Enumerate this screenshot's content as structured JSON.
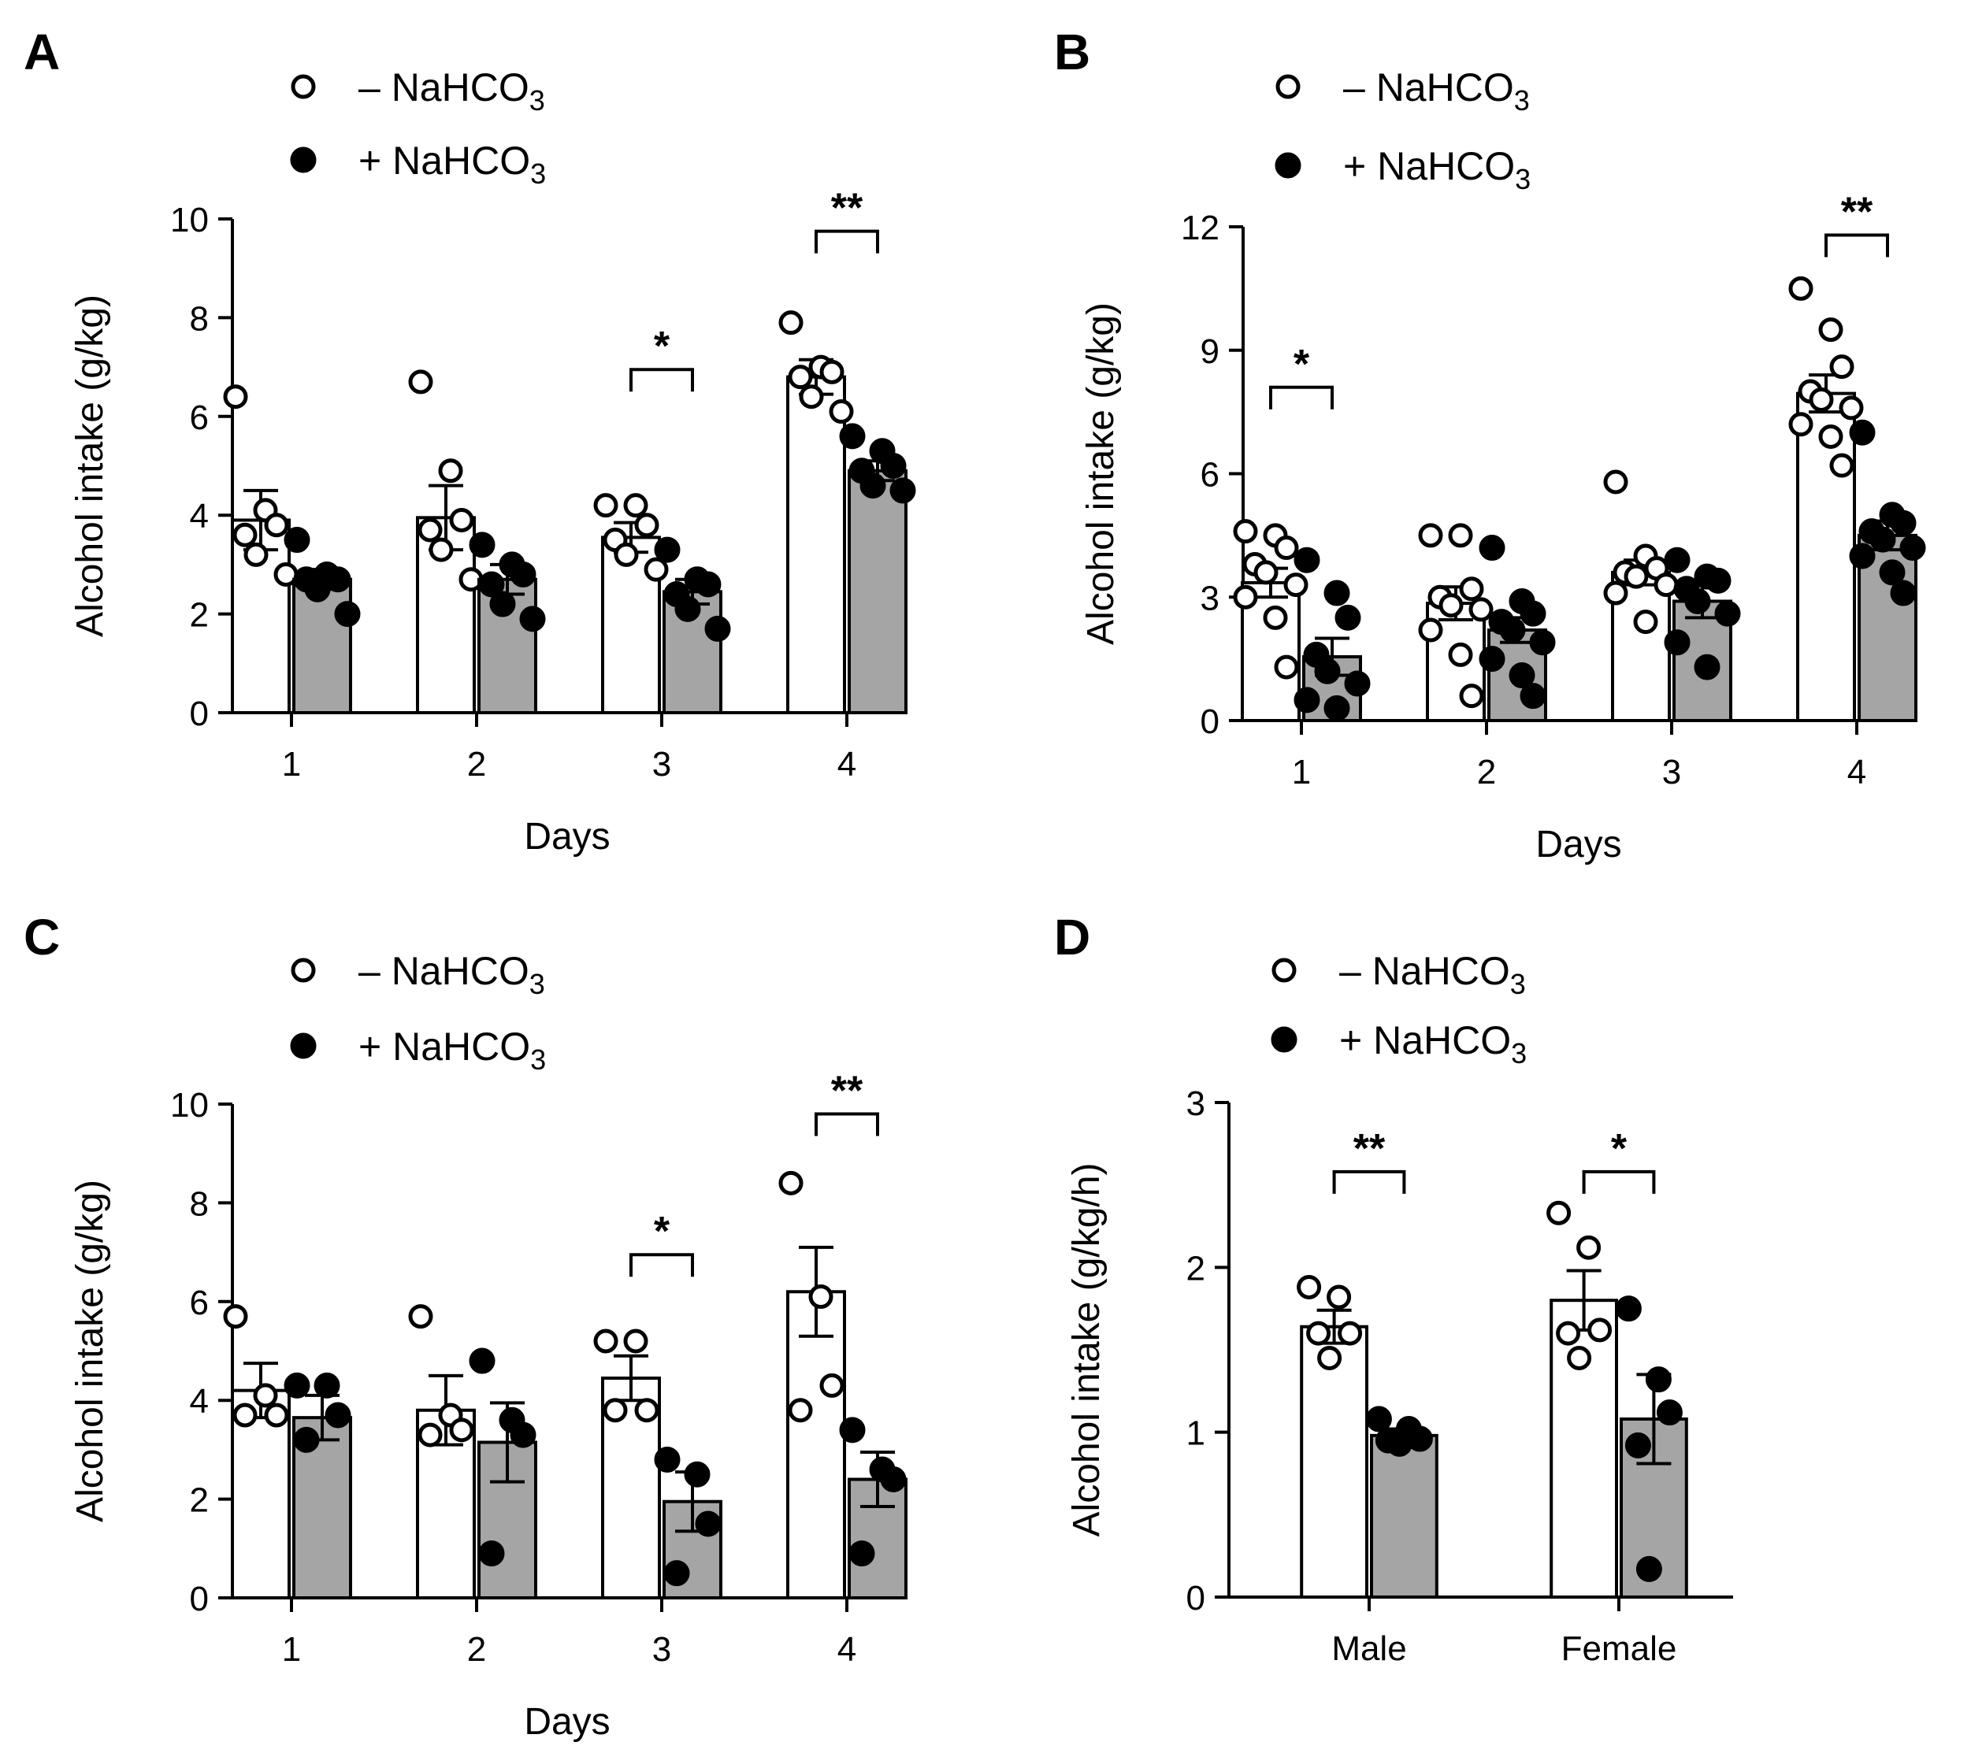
{
  "colors": {
    "bar_without": "#ffffff",
    "bar_with": "#a5a5a5",
    "stroke": "#000000"
  },
  "legend_entries": [
    {
      "marker": "open-circle",
      "text": "– NaHCO",
      "sub": "3"
    },
    {
      "marker": "filled-circle",
      "text": "+ NaHCO",
      "sub": "3"
    }
  ],
  "chart_data": [
    {
      "panel": "A",
      "type": "bar",
      "xlabel": "Days",
      "ylabel": "Alcohol intake (g/kg)",
      "categories": [
        "1",
        "2",
        "3",
        "4"
      ],
      "ylim": [
        0,
        10
      ],
      "yticks": [
        "0",
        "2",
        "4",
        "6",
        "8",
        "10"
      ],
      "series": [
        {
          "name": "– NaHCO3",
          "values": [
            3.9,
            3.95,
            3.55,
            6.8
          ],
          "sem": [
            0.6,
            0.65,
            0.3,
            0.35
          ],
          "points": [
            [
              6.4,
              4.1,
              3.8,
              3.6,
              3.2,
              2.8
            ],
            [
              6.7,
              4.9,
              3.9,
              3.7,
              3.3,
              2.7
            ],
            [
              4.2,
              4.2,
              3.8,
              3.5,
              3.2,
              2.9
            ],
            [
              7.9,
              7.0,
              6.9,
              6.8,
              6.4,
              6.1
            ]
          ]
        },
        {
          "name": "+ NaHCO3",
          "values": [
            2.7,
            2.7,
            2.45,
            4.9
          ],
          "sem": [
            0.2,
            0.3,
            0.25,
            0.2
          ],
          "points": [
            [
              3.5,
              2.8,
              2.7,
              2.7,
              2.5,
              2.0
            ],
            [
              3.4,
              3.0,
              2.8,
              2.6,
              2.2,
              1.9
            ],
            [
              3.3,
              2.7,
              2.6,
              2.4,
              2.1,
              1.7
            ],
            [
              5.6,
              5.3,
              5.0,
              4.9,
              4.6,
              4.5
            ]
          ]
        }
      ],
      "significance": [
        {
          "category": "3",
          "label": "*",
          "y": 6.95
        },
        {
          "category": "4",
          "label": "**",
          "y": 9.75
        }
      ]
    },
    {
      "panel": "B",
      "type": "bar",
      "xlabel": "Days",
      "ylabel": "Alcohol intake (g/kg)",
      "categories": [
        "1",
        "2",
        "3",
        "4"
      ],
      "ylim": [
        0,
        12
      ],
      "yticks": [
        "0",
        "3",
        "6",
        "9",
        "12"
      ],
      "series": [
        {
          "name": "– NaHCO3",
          "values": [
            3.35,
            2.85,
            3.6,
            7.95
          ],
          "sem": [
            0.35,
            0.4,
            0.3,
            0.45
          ],
          "points": [
            [
              4.6,
              4.5,
              4.2,
              3.8,
              3.6,
              3.3,
              3.0,
              2.5,
              1.3
            ],
            [
              4.5,
              4.5,
              3.2,
              3.0,
              2.8,
              2.7,
              2.2,
              1.6,
              0.6
            ],
            [
              5.8,
              4.0,
              3.7,
              3.6,
              3.5,
              3.3,
              3.1,
              2.4
            ],
            [
              10.5,
              9.5,
              8.6,
              8.0,
              7.8,
              7.6,
              7.2,
              6.9,
              6.2
            ]
          ]
        },
        {
          "name": "+ NaHCO3",
          "values": [
            1.55,
            2.2,
            2.9,
            4.5
          ],
          "sem": [
            0.45,
            0.3,
            0.4,
            0.35
          ],
          "points": [
            [
              3.9,
              3.1,
              2.5,
              1.6,
              1.2,
              0.9,
              0.5,
              0.3
            ],
            [
              4.2,
              2.9,
              2.6,
              2.4,
              2.2,
              1.9,
              1.5,
              1.1,
              0.6
            ],
            [
              3.9,
              3.5,
              3.4,
              3.2,
              2.9,
              2.6,
              1.9,
              1.3
            ],
            [
              7.0,
              5.0,
              4.8,
              4.6,
              4.4,
              4.2,
              4.0,
              3.6,
              3.1
            ]
          ]
        }
      ],
      "significance": [
        {
          "category": "1",
          "label": "*",
          "y": 8.1
        },
        {
          "category": "4",
          "label": "**",
          "y": 11.8
        }
      ]
    },
    {
      "panel": "C",
      "type": "bar",
      "xlabel": "Days",
      "ylabel": "Alcohol intake (g/kg)",
      "categories": [
        "1",
        "2",
        "3",
        "4"
      ],
      "ylim": [
        0,
        10
      ],
      "yticks": [
        "0",
        "2",
        "4",
        "6",
        "8",
        "10"
      ],
      "series": [
        {
          "name": "– NaHCO3",
          "values": [
            4.2,
            3.8,
            4.45,
            6.2
          ],
          "sem": [
            0.55,
            0.7,
            0.45,
            0.9
          ],
          "points": [
            [
              5.7,
              4.1,
              3.7,
              3.7
            ],
            [
              5.7,
              3.7,
              3.4,
              3.3
            ],
            [
              5.2,
              5.2,
              3.8,
              3.8
            ],
            [
              8.4,
              6.1,
              4.3,
              3.8
            ]
          ]
        },
        {
          "name": "+ NaHCO3",
          "values": [
            3.65,
            3.15,
            1.95,
            2.4
          ],
          "sem": [
            0.45,
            0.8,
            0.6,
            0.55
          ],
          "points": [
            [
              4.3,
              4.3,
              3.7,
              3.2
            ],
            [
              4.8,
              3.6,
              3.3,
              0.9
            ],
            [
              2.8,
              2.5,
              1.5,
              0.5
            ],
            [
              3.4,
              2.6,
              2.4,
              0.9
            ]
          ]
        }
      ],
      "significance": [
        {
          "category": "3",
          "label": "*",
          "y": 6.95
        },
        {
          "category": "4",
          "label": "**",
          "y": 9.8
        }
      ]
    },
    {
      "panel": "D",
      "type": "bar",
      "xlabel": "",
      "ylabel": "Alcohol intake (g/kg/h)",
      "categories": [
        "Male",
        "Female"
      ],
      "ylim": [
        0,
        3
      ],
      "yticks": [
        "0",
        "1",
        "2",
        "3"
      ],
      "series": [
        {
          "name": "– NaHCO3",
          "values": [
            1.64,
            1.8
          ],
          "sem": [
            0.1,
            0.18
          ],
          "points": [
            [
              1.88,
              1.82,
              1.6,
              1.6,
              1.45
            ],
            [
              2.33,
              2.12,
              1.62,
              1.6,
              1.45
            ]
          ]
        },
        {
          "name": "+ NaHCO3",
          "values": [
            0.98,
            1.08
          ],
          "sem": [
            0.04,
            0.27
          ],
          "points": [
            [
              1.08,
              1.02,
              0.96,
              0.95,
              0.93
            ],
            [
              1.75,
              1.32,
              1.12,
              0.92,
              0.17
            ]
          ]
        }
      ],
      "significance": [
        {
          "category": "Male",
          "label": "**",
          "y": 2.58
        },
        {
          "category": "Female",
          "label": "*",
          "y": 2.58
        }
      ]
    }
  ]
}
